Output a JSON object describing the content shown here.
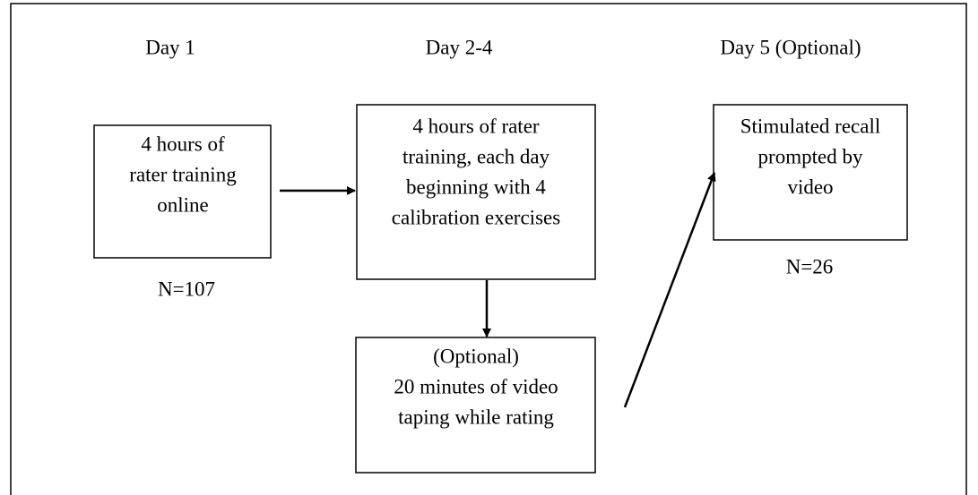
{
  "headers": [
    "Day 1",
    "Day 2-4",
    "Day 5 (Optional)"
  ],
  "nodes": [
    {
      "lines": [
        "4 hours of",
        "rater training",
        "online"
      ]
    },
    {
      "lines": [
        "4 hours of rater",
        "training, each day",
        "beginning with 4",
        "calibration exercises"
      ]
    },
    {
      "lines": [
        "(Optional)",
        "20 minutes of video",
        "taping while rating"
      ]
    },
    {
      "lines": [
        "Stimulated recall",
        "prompted by",
        "video"
      ]
    }
  ],
  "notes": [
    "N=107",
    "N=26"
  ]
}
